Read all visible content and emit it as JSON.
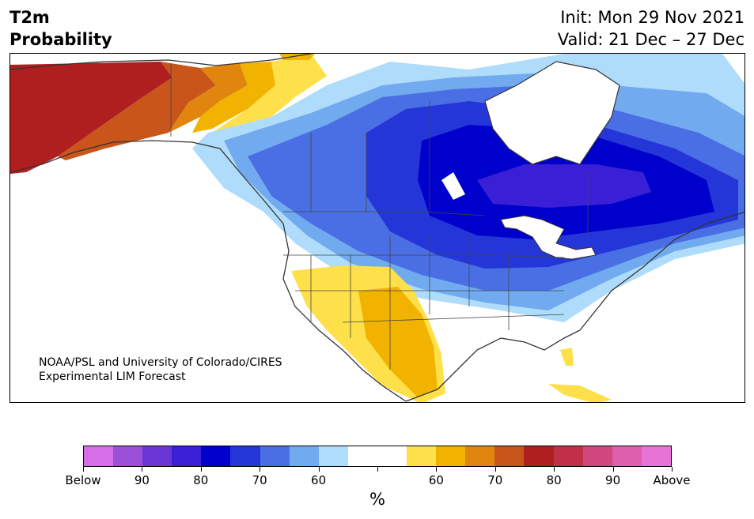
{
  "title": {
    "line1": "T2m",
    "line2": "Probability"
  },
  "dates": {
    "init": "Init: Mon 29 Nov 2021",
    "valid": "Valid: 21 Dec – 27 Dec"
  },
  "credit": {
    "line1": "NOAA/PSL and University of Colorado/CIRES",
    "line2": "Experimental LIM Forecast"
  },
  "colorbar": {
    "colors": [
      "#d66ee8",
      "#9c4fd9",
      "#6a36d6",
      "#3a1fd6",
      "#0000cc",
      "#2436d8",
      "#4a6fe4",
      "#72aaef",
      "#aedcfa",
      "#ffffff",
      "#ffffff",
      "#fde04a",
      "#f1b300",
      "#e0860f",
      "#c9551a",
      "#b01f1f",
      "#c03048",
      "#d0487e",
      "#dd5fae",
      "#e873d6"
    ],
    "tick_labels": [
      "Below",
      "90",
      "80",
      "70",
      "60",
      "",
      "60",
      "70",
      "80",
      "90",
      "Above"
    ],
    "unit": "%"
  },
  "map_colors": {
    "ocean": "#ffffff",
    "coast": "#333333",
    "blue_deep": "#0000cc",
    "blue_purple": "#3a1fd6",
    "blue_2": "#2436d8",
    "blue_3": "#4a6fe4",
    "blue_4": "#72aaef",
    "blue_5": "#aedcfa",
    "yellow": "#fde04a",
    "gold": "#f1b300",
    "orange": "#e0860f",
    "rust": "#c9551a",
    "red": "#b01f1f"
  }
}
